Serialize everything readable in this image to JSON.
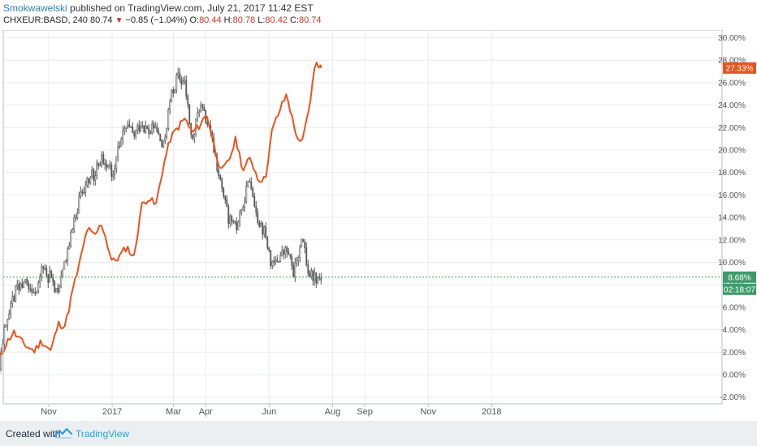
{
  "header": {
    "author": "Smokwawelski",
    "published": " published on TradingView.com, July 21, 2017 11:42 EST",
    "symbol": "CHXEUR:BASD, 240 ",
    "last": "80.74",
    "down_symbol": "▼",
    "change": " −0.85 (−1.04%) ",
    "o_label": "O:",
    "o_value": "80.44",
    "h_label": " H:",
    "h_value": "80.78",
    "l_label": " L:",
    "l_value": "80.42",
    "c_label": " C:",
    "c_value": "80.74"
  },
  "footer": {
    "created_with": "Created with",
    "brand": "TradingView",
    "logo_icon": "tradingview-logo-icon"
  },
  "colors": {
    "orange_series": "#e8541e",
    "candle": "#555555",
    "grid": "#e9ecef",
    "green_badge": "#3f9b6b",
    "orange_badge": "#e8541e"
  },
  "chart_data": {
    "type": "line",
    "y_unit": "%",
    "ylim": [
      -3.0,
      30.5
    ],
    "y_ticks": [
      "-2.00%",
      "0.00%",
      "2.00%",
      "4.00%",
      "6.00%",
      "8.00%",
      "10.00%",
      "12.00%",
      "14.00%",
      "16.00%",
      "18.00%",
      "20.00%",
      "22.00%",
      "24.00%",
      "26.00%",
      "28.00%",
      "30.00%"
    ],
    "x_tick_labels": [
      "Nov",
      "2017",
      "Mar",
      "Apr",
      "Jun",
      "Aug",
      "Sep",
      "Nov",
      "2018"
    ],
    "grid": true,
    "badges": {
      "orange_last": "27.33%",
      "green_last": "8.68%",
      "countdown": "02:18:07"
    },
    "series": [
      {
        "style": "line",
        "color": "#e8541e",
        "x": [
          "2016-09-13",
          "2016-09-20",
          "2016-09-28",
          "2016-10-08",
          "2016-10-18",
          "2016-10-25",
          "2016-11-03",
          "2016-11-10",
          "2016-11-17",
          "2016-11-24",
          "2016-12-01",
          "2016-12-08",
          "2016-12-15",
          "2016-12-22",
          "2017-01-01",
          "2017-01-08",
          "2017-01-15",
          "2017-01-22",
          "2017-01-29",
          "2017-02-05",
          "2017-02-12",
          "2017-02-19",
          "2017-02-26",
          "2017-03-05",
          "2017-03-12",
          "2017-03-19",
          "2017-03-26",
          "2017-04-02",
          "2017-04-09",
          "2017-04-16",
          "2017-04-23",
          "2017-04-30",
          "2017-05-07",
          "2017-05-14",
          "2017-05-21",
          "2017-05-28",
          "2017-06-04",
          "2017-06-11",
          "2017-06-18",
          "2017-06-25",
          "2017-07-02",
          "2017-07-09",
          "2017-07-16",
          "2017-07-21"
        ],
        "y": [
          1.2,
          2.6,
          3.8,
          2.7,
          2.1,
          3.0,
          2.1,
          4.5,
          4.4,
          7.5,
          10.0,
          13.0,
          12.3,
          13.5,
          10.0,
          10.5,
          11.4,
          10.4,
          15.0,
          15.8,
          15.0,
          18.5,
          21.0,
          22.0,
          22.8,
          21.5,
          22.2,
          23.2,
          20.5,
          18.0,
          19.0,
          21.0,
          18.2,
          19.3,
          17.5,
          17.3,
          21.8,
          23.5,
          25.0,
          22.0,
          20.3,
          23.5,
          28.0,
          27.3
        ]
      },
      {
        "style": "candles",
        "color": "#555555",
        "x": [
          "2016-09-13",
          "2016-09-20",
          "2016-09-28",
          "2016-10-08",
          "2016-10-18",
          "2016-10-25",
          "2016-11-03",
          "2016-11-10",
          "2016-11-17",
          "2016-11-24",
          "2016-12-01",
          "2016-12-08",
          "2016-12-15",
          "2016-12-22",
          "2017-01-01",
          "2017-01-08",
          "2017-01-15",
          "2017-01-22",
          "2017-01-29",
          "2017-02-05",
          "2017-02-12",
          "2017-02-19",
          "2017-02-26",
          "2017-03-05",
          "2017-03-12",
          "2017-03-19",
          "2017-03-26",
          "2017-04-02",
          "2017-04-09",
          "2017-04-16",
          "2017-04-23",
          "2017-04-30",
          "2017-05-07",
          "2017-05-14",
          "2017-05-21",
          "2017-05-28",
          "2017-06-04",
          "2017-06-11",
          "2017-06-18",
          "2017-06-25",
          "2017-07-02",
          "2017-07-09",
          "2017-07-16",
          "2017-07-21"
        ],
        "y": [
          0.0,
          4.5,
          7.0,
          8.5,
          7.2,
          9.5,
          8.5,
          7.0,
          10.5,
          13.0,
          16.0,
          17.5,
          17.8,
          19.5,
          18.0,
          20.5,
          22.0,
          21.2,
          22.5,
          21.5,
          22.0,
          20.0,
          24.5,
          26.5,
          25.8,
          20.5,
          24.0,
          22.5,
          20.0,
          16.5,
          14.0,
          12.8,
          15.5,
          17.5,
          14.0,
          12.5,
          9.5,
          10.5,
          11.0,
          9.0,
          12.5,
          9.0,
          8.7,
          8.68
        ]
      }
    ]
  }
}
